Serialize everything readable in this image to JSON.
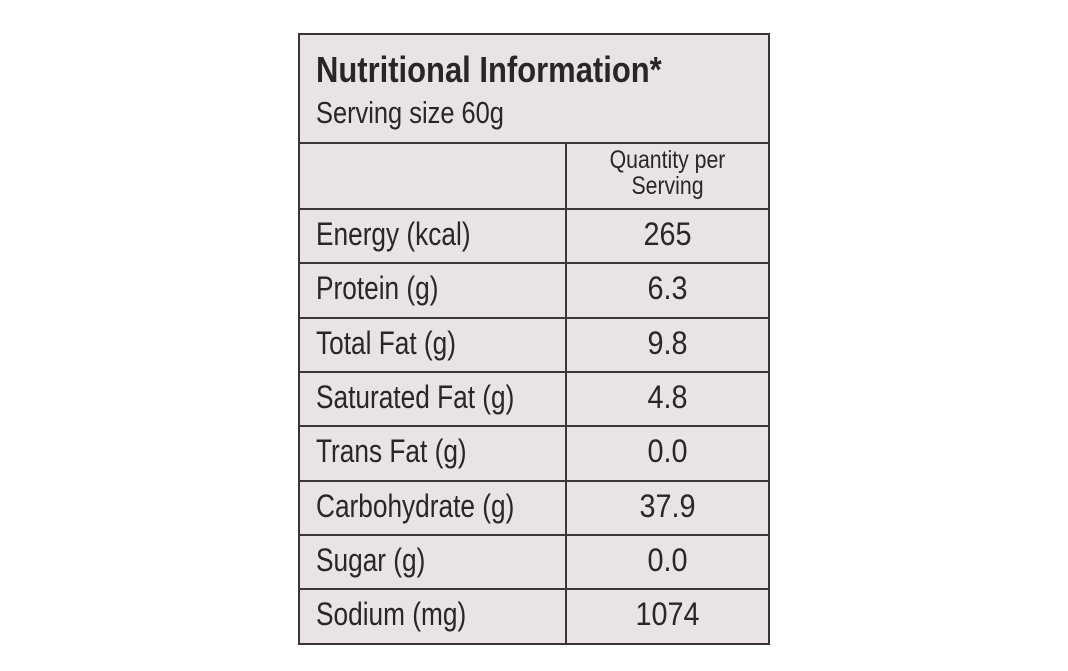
{
  "header": {
    "title": "Nutritional Information*",
    "subtitle": "Serving size 60g"
  },
  "table": {
    "quantity_header": "Quantity per Serving",
    "rows": [
      [
        "Energy (kcal)",
        "265"
      ],
      [
        "Protein (g)",
        "6.3"
      ],
      [
        "Total Fat (g)",
        "9.8"
      ],
      [
        "Saturated Fat (g)",
        "4.8"
      ],
      [
        "Trans Fat (g)",
        "0.0"
      ],
      [
        "Carbohydrate (g)",
        "37.9"
      ],
      [
        "Sugar (g)",
        "0.0"
      ],
      [
        "Sodium (mg)",
        "1074"
      ]
    ]
  }
}
